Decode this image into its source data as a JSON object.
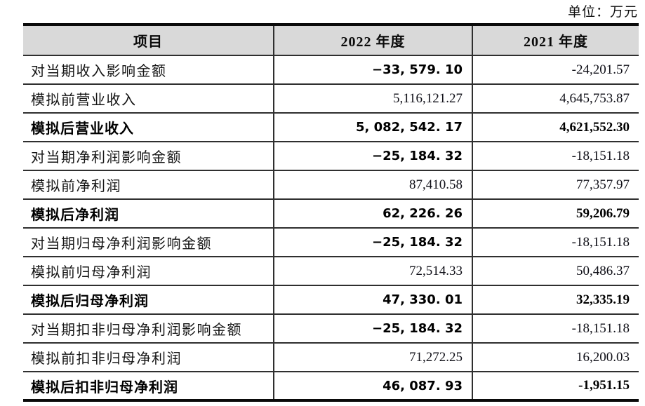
{
  "meta": {
    "unit_note": "单位：万元"
  },
  "table": {
    "headers": {
      "item": "项目",
      "y2022": "2022 年度",
      "y2021": "2021 年度"
    },
    "rows": [
      {
        "label": "对当期收入影响金额",
        "y2022": "−33, 579. 10",
        "y2021": "-24,201.57"
      },
      {
        "label": "模拟前营业收入",
        "y2022": "5,116,121.27",
        "y2021": "4,645,753.87"
      },
      {
        "label": "模拟后营业收入",
        "y2022": "5, 082, 542. 17",
        "y2021": "4,621,552.30"
      },
      {
        "label": "对当期净利润影响金额",
        "y2022": "−25, 184. 32",
        "y2021": "-18,151.18"
      },
      {
        "label": "模拟前净利润",
        "y2022": "87,410.58",
        "y2021": "77,357.97"
      },
      {
        "label": "模拟后净利润",
        "y2022": "62, 226. 26",
        "y2021": "59,206.79"
      },
      {
        "label": "对当期归母净利润影响金额",
        "y2022": "−25, 184. 32",
        "y2021": "-18,151.18"
      },
      {
        "label": "模拟前归母净利润",
        "y2022": "72,514.33",
        "y2021": "50,486.37"
      },
      {
        "label": "模拟后归母净利润",
        "y2022": "47, 330. 01",
        "y2021": "32,335.19"
      },
      {
        "label": "对当期扣非归母净利润影响金额",
        "y2022": "−25, 184. 32",
        "y2021": "-18,151.18"
      },
      {
        "label": "模拟前扣非归母净利润",
        "y2022": "71,272.25",
        "y2021": "16,200.03"
      },
      {
        "label": "模拟后扣非归母净利润",
        "y2022": "46, 087. 93",
        "y2021": "-1,951.15"
      }
    ]
  }
}
